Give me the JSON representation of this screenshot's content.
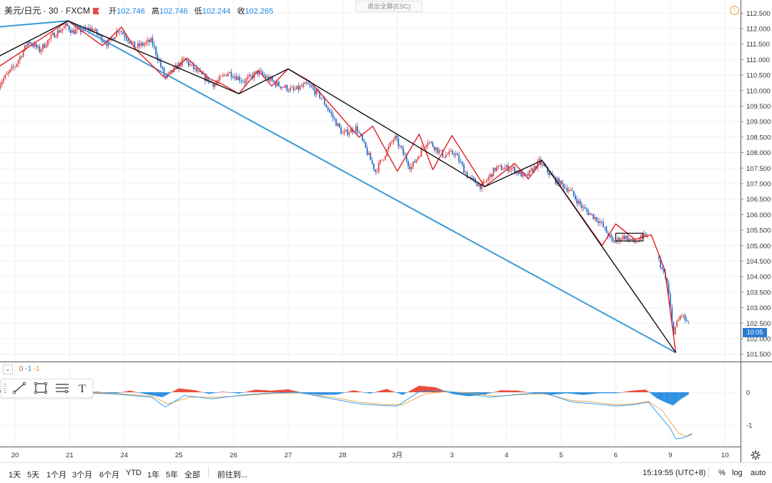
{
  "header": {
    "symbol": "美元/日元 · 30 · FXCM",
    "open_label": "开",
    "open": "102.746",
    "high_label": "高",
    "high": "102.746",
    "low_label": "低",
    "low": "102.244",
    "close_label": "收",
    "close": "102.265",
    "exit_fullscreen": "退出全屏(ESC)"
  },
  "price_tag": "10:05",
  "indicator": {
    "p0": "0",
    "p1": "-1",
    "p2": "-1"
  },
  "colors": {
    "candle_up": "#e04545",
    "candle_down": "#2b6cc4",
    "wave_red": "#e0202a",
    "wave_black": "#111111",
    "trend_blue": "#3a9ad9",
    "hist_pos": "#e84a3a",
    "hist_neg": "#2d8fe0",
    "macd_line": "#2196f3",
    "signal_line": "#f0a040"
  },
  "toolbar": {
    "tools": [
      "trendline-icon",
      "rectangle-icon",
      "fib-icon",
      "text-icon"
    ],
    "text_tool_glyph": "T"
  },
  "bottom": {
    "ranges": [
      "1天",
      "5天",
      "1个月",
      "3个月",
      "6个月",
      "YTD",
      "1年",
      "5年",
      "全部"
    ],
    "goto": "前往到...",
    "clock": "15:19:55 (UTC+8)",
    "percent": "%",
    "log": "log",
    "auto": "auto"
  },
  "chart_data": {
    "type": "candlestick",
    "instrument": "USD/JPY",
    "interval": "30",
    "ylim": [
      101.4,
      112.6
    ],
    "y_ticks": [
      "112.500",
      "112.000",
      "111.500",
      "111.000",
      "110.500",
      "110.000",
      "109.500",
      "109.000",
      "108.500",
      "108.000",
      "107.500",
      "107.000",
      "106.500",
      "106.000",
      "105.500",
      "105.000",
      "104.500",
      "104.000",
      "103.500",
      "103.000",
      "102.500",
      "102.000",
      "101.500"
    ],
    "x_ticks": [
      "20",
      "21",
      "24",
      "25",
      "26",
      "27",
      "28",
      "3月",
      "3",
      "4",
      "5",
      "6",
      "9",
      "10"
    ],
    "x_tick_days": [
      0,
      1,
      2,
      3,
      4,
      5,
      6,
      7,
      8,
      9,
      10,
      11,
      12,
      13
    ],
    "price_path": [
      [
        -0.3,
        110.2
      ],
      [
        0.0,
        110.8
      ],
      [
        0.25,
        111.6
      ],
      [
        0.45,
        111.3
      ],
      [
        0.7,
        111.8
      ],
      [
        0.95,
        112.1
      ],
      [
        1.05,
        111.9
      ],
      [
        1.4,
        112.0
      ],
      [
        1.7,
        111.5
      ],
      [
        1.9,
        112.0
      ],
      [
        2.2,
        111.4
      ],
      [
        2.5,
        111.6
      ],
      [
        2.75,
        110.4
      ],
      [
        3.1,
        111.0
      ],
      [
        3.4,
        110.5
      ],
      [
        3.65,
        110.2
      ],
      [
        3.9,
        110.6
      ],
      [
        4.2,
        110.3
      ],
      [
        4.45,
        110.6
      ],
      [
        4.8,
        110.2
      ],
      [
        5.1,
        110.0
      ],
      [
        5.35,
        110.2
      ],
      [
        5.6,
        109.8
      ],
      [
        6.0,
        108.6
      ],
      [
        6.25,
        108.8
      ],
      [
        6.6,
        107.4
      ],
      [
        6.95,
        108.5
      ],
      [
        7.25,
        107.5
      ],
      [
        7.55,
        108.4
      ],
      [
        7.85,
        107.9
      ],
      [
        8.05,
        108.0
      ],
      [
        8.3,
        107.2
      ],
      [
        8.55,
        106.9
      ],
      [
        8.8,
        107.5
      ],
      [
        9.1,
        107.5
      ],
      [
        9.35,
        107.2
      ],
      [
        9.6,
        107.7
      ],
      [
        9.9,
        107.1
      ],
      [
        10.15,
        106.8
      ],
      [
        10.4,
        106.2
      ],
      [
        10.7,
        105.8
      ],
      [
        10.95,
        105.1
      ],
      [
        11.15,
        105.3
      ],
      [
        11.35,
        105.1
      ],
      [
        11.55,
        105.35
      ],
      [
        11.8,
        104.5
      ],
      [
        11.95,
        103.7
      ],
      [
        12.05,
        102.2
      ],
      [
        12.2,
        102.8
      ],
      [
        12.35,
        102.4
      ]
    ],
    "overlays": {
      "trend_blue": [
        [
          -1.3,
          111.9
        ],
        [
          0.97,
          112.25
        ],
        [
          12.1,
          101.55
        ]
      ],
      "wave_black": [
        [
          -1.3,
          110.2
        ],
        [
          0.97,
          112.25
        ],
        [
          4.1,
          109.9
        ],
        [
          5.0,
          110.7
        ],
        [
          8.6,
          106.9
        ],
        [
          9.65,
          107.75
        ],
        [
          12.1,
          101.55
        ]
      ],
      "wave_red": [
        [
          -1.3,
          109.6
        ],
        [
          0.97,
          112.25
        ],
        [
          1.6,
          111.45
        ],
        [
          1.95,
          112.05
        ],
        [
          2.2,
          111.35
        ],
        [
          2.75,
          110.4
        ],
        [
          3.15,
          111.05
        ],
        [
          3.55,
          110.4
        ],
        [
          3.8,
          110.2
        ],
        [
          4.1,
          109.9
        ],
        [
          4.45,
          110.65
        ],
        [
          4.7,
          110.15
        ],
        [
          5.0,
          110.7
        ],
        [
          5.4,
          110.3
        ],
        [
          6.3,
          108.5
        ],
        [
          6.55,
          108.85
        ],
        [
          7.0,
          107.4
        ],
        [
          7.4,
          108.6
        ],
        [
          7.65,
          107.45
        ],
        [
          8.0,
          108.55
        ],
        [
          8.6,
          106.9
        ],
        [
          9.15,
          107.65
        ],
        [
          9.4,
          107.15
        ],
        [
          9.65,
          107.75
        ],
        [
          10.75,
          105.0
        ],
        [
          11.0,
          105.7
        ],
        [
          11.35,
          105.2
        ],
        [
          11.65,
          105.35
        ],
        [
          11.9,
          104.2
        ],
        [
          12.1,
          101.55
        ]
      ],
      "box": {
        "x": [
          11.0,
          11.5
        ],
        "y": [
          105.15,
          105.4
        ]
      }
    },
    "indicator": {
      "type": "macd",
      "ylim": [
        -1.5,
        0.3
      ],
      "y_ticks": [
        "0",
        "-1"
      ],
      "histogram": [
        [
          -0.3,
          0.05
        ],
        [
          0.1,
          0.08
        ],
        [
          0.4,
          0.04
        ],
        [
          0.7,
          0.07
        ],
        [
          0.95,
          0.1
        ],
        [
          1.2,
          -0.03
        ],
        [
          1.5,
          0.02
        ],
        [
          1.8,
          -0.05
        ],
        [
          2.1,
          0.05
        ],
        [
          2.4,
          -0.06
        ],
        [
          2.7,
          -0.15
        ],
        [
          3.0,
          0.12
        ],
        [
          3.3,
          0.06
        ],
        [
          3.55,
          -0.05
        ],
        [
          3.8,
          0.02
        ],
        [
          4.1,
          -0.04
        ],
        [
          4.4,
          0.08
        ],
        [
          4.7,
          0.05
        ],
        [
          5.0,
          0.09
        ],
        [
          5.3,
          -0.03
        ],
        [
          5.6,
          -0.08
        ],
        [
          5.9,
          -0.07
        ],
        [
          6.2,
          0.06
        ],
        [
          6.5,
          -0.04
        ],
        [
          6.8,
          0.1
        ],
        [
          7.1,
          -0.08
        ],
        [
          7.4,
          0.2
        ],
        [
          7.7,
          0.15
        ],
        [
          8.0,
          -0.05
        ],
        [
          8.3,
          -0.12
        ],
        [
          8.6,
          -0.07
        ],
        [
          8.9,
          0.06
        ],
        [
          9.2,
          0.05
        ],
        [
          9.5,
          -0.03
        ],
        [
          9.8,
          -0.08
        ],
        [
          10.1,
          -0.03
        ],
        [
          10.4,
          -0.08
        ],
        [
          10.7,
          -0.03
        ],
        [
          11.0,
          -0.03
        ],
        [
          11.3,
          0.05
        ],
        [
          11.55,
          0.08
        ],
        [
          11.75,
          -0.18
        ],
        [
          11.9,
          -0.3
        ],
        [
          12.05,
          -0.4
        ],
        [
          12.2,
          -0.2
        ],
        [
          12.35,
          -0.05
        ]
      ],
      "macd_line": [
        [
          -0.3,
          0.0
        ],
        [
          0.5,
          0.05
        ],
        [
          1.0,
          0.0
        ],
        [
          1.8,
          -0.05
        ],
        [
          2.5,
          -0.15
        ],
        [
          2.75,
          -0.45
        ],
        [
          3.1,
          -0.1
        ],
        [
          3.6,
          -0.2
        ],
        [
          4.2,
          -0.08
        ],
        [
          4.7,
          -0.02
        ],
        [
          5.2,
          0.0
        ],
        [
          5.8,
          -0.2
        ],
        [
          6.3,
          -0.35
        ],
        [
          6.7,
          -0.4
        ],
        [
          7.0,
          -0.42
        ],
        [
          7.4,
          0.02
        ],
        [
          7.8,
          0.05
        ],
        [
          8.3,
          -0.05
        ],
        [
          8.7,
          -0.15
        ],
        [
          9.3,
          -0.05
        ],
        [
          9.7,
          -0.02
        ],
        [
          10.2,
          -0.3
        ],
        [
          10.6,
          -0.35
        ],
        [
          11.0,
          -0.42
        ],
        [
          11.3,
          -0.38
        ],
        [
          11.6,
          -0.3
        ],
        [
          11.8,
          -0.7
        ],
        [
          12.0,
          -1.1
        ],
        [
          12.1,
          -1.42
        ],
        [
          12.25,
          -1.38
        ],
        [
          12.4,
          -1.25
        ]
      ],
      "signal_line": [
        [
          -0.3,
          0.02
        ],
        [
          0.5,
          0.04
        ],
        [
          1.0,
          0.02
        ],
        [
          1.8,
          -0.03
        ],
        [
          2.5,
          -0.12
        ],
        [
          2.8,
          -0.35
        ],
        [
          3.2,
          -0.15
        ],
        [
          3.7,
          -0.15
        ],
        [
          4.2,
          -0.1
        ],
        [
          4.7,
          -0.04
        ],
        [
          5.2,
          -0.02
        ],
        [
          5.8,
          -0.15
        ],
        [
          6.3,
          -0.3
        ],
        [
          6.8,
          -0.38
        ],
        [
          7.1,
          -0.38
        ],
        [
          7.5,
          -0.05
        ],
        [
          7.9,
          0.02
        ],
        [
          8.3,
          -0.02
        ],
        [
          8.8,
          -0.12
        ],
        [
          9.3,
          -0.07
        ],
        [
          9.7,
          -0.04
        ],
        [
          10.2,
          -0.25
        ],
        [
          10.6,
          -0.3
        ],
        [
          11.0,
          -0.38
        ],
        [
          11.3,
          -0.36
        ],
        [
          11.6,
          -0.28
        ],
        [
          11.85,
          -0.55
        ],
        [
          12.0,
          -0.9
        ],
        [
          12.15,
          -1.25
        ],
        [
          12.3,
          -1.35
        ],
        [
          12.4,
          -1.28
        ]
      ]
    }
  }
}
